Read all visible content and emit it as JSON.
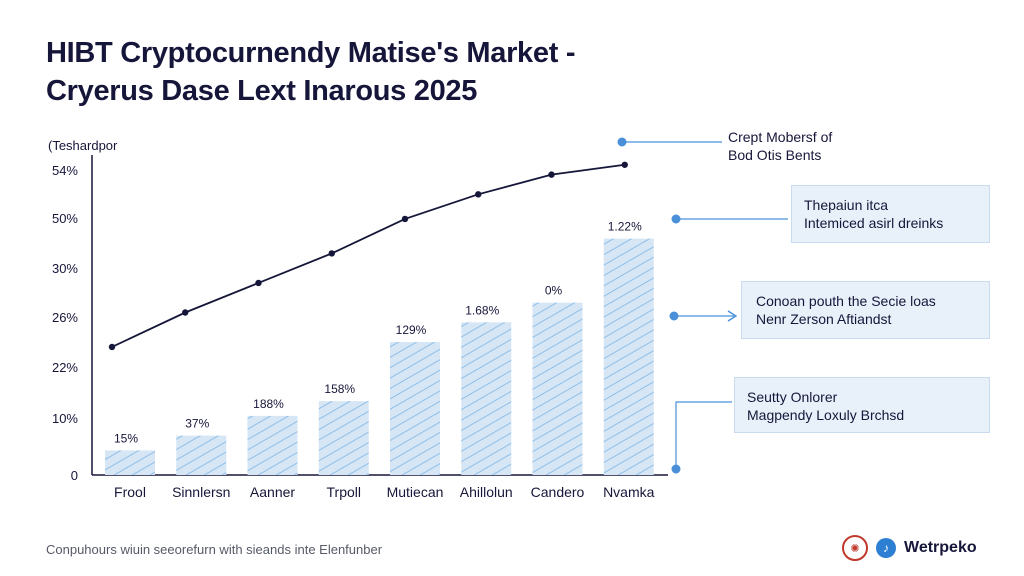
{
  "title": {
    "line1": "HIBT Cryptocurnendy Matise's Market -",
    "line2": "Cryerus Dase Lext Inarous 2025"
  },
  "chart_data": {
    "type": "bar",
    "ylabel": "(Teshardpor",
    "y_ticks": [
      "0",
      "10%",
      "22%",
      "26%",
      "30%",
      "50%",
      "54%"
    ],
    "categories": [
      "Frool",
      "Sinnlersn",
      "Aanner",
      "Trpoll",
      "Mutiecan",
      "Ahillolun",
      "Candero",
      "Nvamka"
    ],
    "values": [
      5,
      8,
      12,
      15,
      27,
      31,
      35,
      48
    ],
    "bar_labels": [
      "15%",
      "37%",
      "188%",
      "158%",
      "129%",
      "1.68%",
      "0%",
      "1.22%"
    ],
    "line_values": [
      26,
      33,
      39,
      45,
      52,
      57,
      61,
      63
    ],
    "ylim": [
      0,
      66
    ],
    "grid": false,
    "bar_color": "#d6e6f5",
    "hatch_color": "#8fbfe8",
    "line_color": "#16163a"
  },
  "callouts": [
    {
      "line1": "Crept Mobersf of",
      "line2": "Bod Otis Bents"
    },
    {
      "line1": "Thepaiun itca",
      "line2": "Intemiced asirl dreinks"
    },
    {
      "line1": "Conoan pouth the Secie loas",
      "line2": "Nenr Zerson Aftiandst"
    },
    {
      "line1": "Seutty Onlorer",
      "line2": "Magpendy Loxuly Brchsd"
    }
  ],
  "footer": "Conpuhours wiuin seeorefurn with sieands inte Elenfunber",
  "brand": {
    "name": "Wetrpeko",
    "seal_icon": "seal-icon",
    "mark_icon": "music-note-icon"
  },
  "accent": "#4a90d9"
}
